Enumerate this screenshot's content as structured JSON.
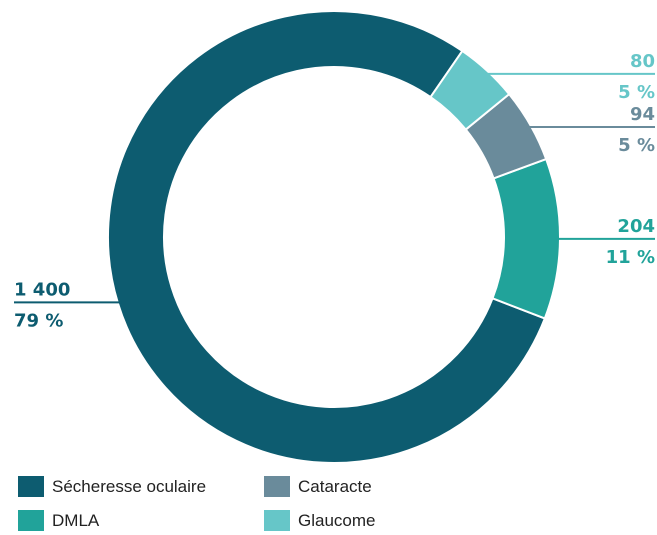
{
  "chart_data": {
    "type": "pie",
    "title": "",
    "categories": [
      "Sécheresse oculaire",
      "DMLA",
      "Cataracte",
      "Glaucome"
    ],
    "values": [
      1400,
      204,
      94,
      80
    ],
    "value_labels": [
      "1 400",
      "204",
      "94",
      "80"
    ],
    "percent_labels": [
      "79 %",
      "11 %",
      "5 %",
      "5 %"
    ],
    "colors": [
      "#0d5c70",
      "#21a39a",
      "#6a8b9b",
      "#66c6c8"
    ],
    "legend_position": "bottom-left"
  }
}
